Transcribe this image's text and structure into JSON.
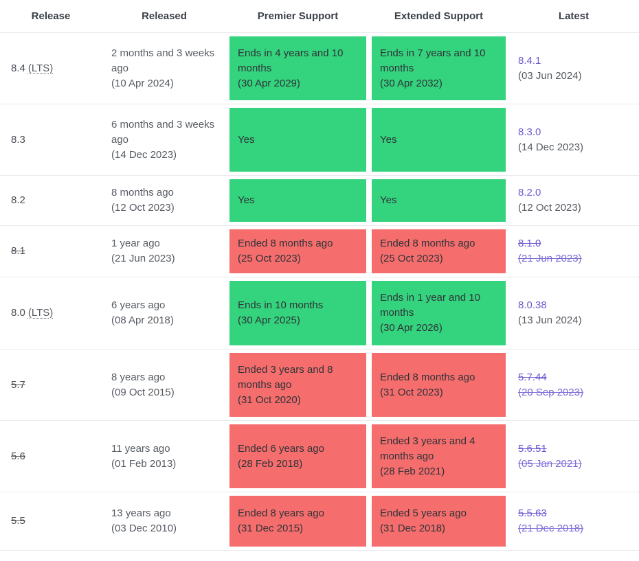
{
  "colors": {
    "supported_bg": "#34d37e",
    "ended_bg": "#f56d6d",
    "link": "#6b5bd2",
    "header_text": "#3c4148",
    "body_text": "#565b62",
    "row_border": "#e8eaed"
  },
  "table": {
    "headers": [
      "Release",
      "Released",
      "Premier Support",
      "Extended Support",
      "Latest"
    ],
    "rows": [
      {
        "release": "8.4",
        "release_suffix": "(LTS)",
        "eol": false,
        "released_rel": "2 months and 3 weeks ago",
        "released_date": "(10 Apr 2024)",
        "premier": {
          "status": "supported",
          "text": "Ends in 4 years and 10 months",
          "date": "(30 Apr 2029)"
        },
        "extended": {
          "status": "supported",
          "text": "Ends in 7 years and 10 months",
          "date": "(30 Apr 2032)"
        },
        "latest": {
          "version": "8.4.1",
          "date": "(03 Jun 2024)"
        }
      },
      {
        "release": "8.3",
        "release_suffix": "",
        "eol": false,
        "released_rel": "6 months and 3 weeks ago",
        "released_date": "(14 Dec 2023)",
        "premier": {
          "status": "supported",
          "text": "Yes",
          "date": ""
        },
        "extended": {
          "status": "supported",
          "text": "Yes",
          "date": ""
        },
        "latest": {
          "version": "8.3.0",
          "date": "(14 Dec 2023)"
        }
      },
      {
        "release": "8.2",
        "release_suffix": "",
        "eol": false,
        "released_rel": "8 months ago",
        "released_date": "(12 Oct 2023)",
        "premier": {
          "status": "supported",
          "text": "Yes",
          "date": ""
        },
        "extended": {
          "status": "supported",
          "text": "Yes",
          "date": ""
        },
        "latest": {
          "version": "8.2.0",
          "date": "(12 Oct 2023)"
        }
      },
      {
        "release": "8.1",
        "release_suffix": "",
        "eol": true,
        "released_rel": "1 year ago",
        "released_date": "(21 Jun 2023)",
        "premier": {
          "status": "ended",
          "text": "Ended 8 months ago",
          "date": "(25 Oct 2023)"
        },
        "extended": {
          "status": "ended",
          "text": "Ended 8 months ago",
          "date": "(25 Oct 2023)"
        },
        "latest": {
          "version": "8.1.0",
          "date": "(21 Jun 2023)"
        }
      },
      {
        "release": "8.0",
        "release_suffix": "(LTS)",
        "eol": false,
        "released_rel": "6 years ago",
        "released_date": "(08 Apr 2018)",
        "premier": {
          "status": "supported",
          "text": "Ends in 10 months",
          "date": "(30 Apr 2025)"
        },
        "extended": {
          "status": "supported",
          "text": "Ends in 1 year and 10 months",
          "date": "(30 Apr 2026)"
        },
        "latest": {
          "version": "8.0.38",
          "date": "(13 Jun 2024)"
        }
      },
      {
        "release": "5.7",
        "release_suffix": "",
        "eol": true,
        "released_rel": "8 years ago",
        "released_date": "(09 Oct 2015)",
        "premier": {
          "status": "ended",
          "text": "Ended 3 years and 8 months ago",
          "date": "(31 Oct 2020)"
        },
        "extended": {
          "status": "ended",
          "text": "Ended 8 months ago",
          "date": "(31 Oct 2023)"
        },
        "latest": {
          "version": "5.7.44",
          "date": "(20 Sep 2023)"
        }
      },
      {
        "release": "5.6",
        "release_suffix": "",
        "eol": true,
        "released_rel": "11 years ago",
        "released_date": "(01 Feb 2013)",
        "premier": {
          "status": "ended",
          "text": "Ended 6 years ago",
          "date": "(28 Feb 2018)"
        },
        "extended": {
          "status": "ended",
          "text": "Ended 3 years and 4 months ago",
          "date": "(28 Feb 2021)"
        },
        "latest": {
          "version": "5.6.51",
          "date": "(05 Jan 2021)"
        }
      },
      {
        "release": "5.5",
        "release_suffix": "",
        "eol": true,
        "released_rel": "13 years ago",
        "released_date": "(03 Dec 2010)",
        "premier": {
          "status": "ended",
          "text": "Ended 8 years ago",
          "date": "(31 Dec 2015)"
        },
        "extended": {
          "status": "ended",
          "text": "Ended 5 years ago",
          "date": "(31 Dec 2018)"
        },
        "latest": {
          "version": "5.5.63",
          "date": "(21 Dec 2018)"
        }
      }
    ]
  }
}
